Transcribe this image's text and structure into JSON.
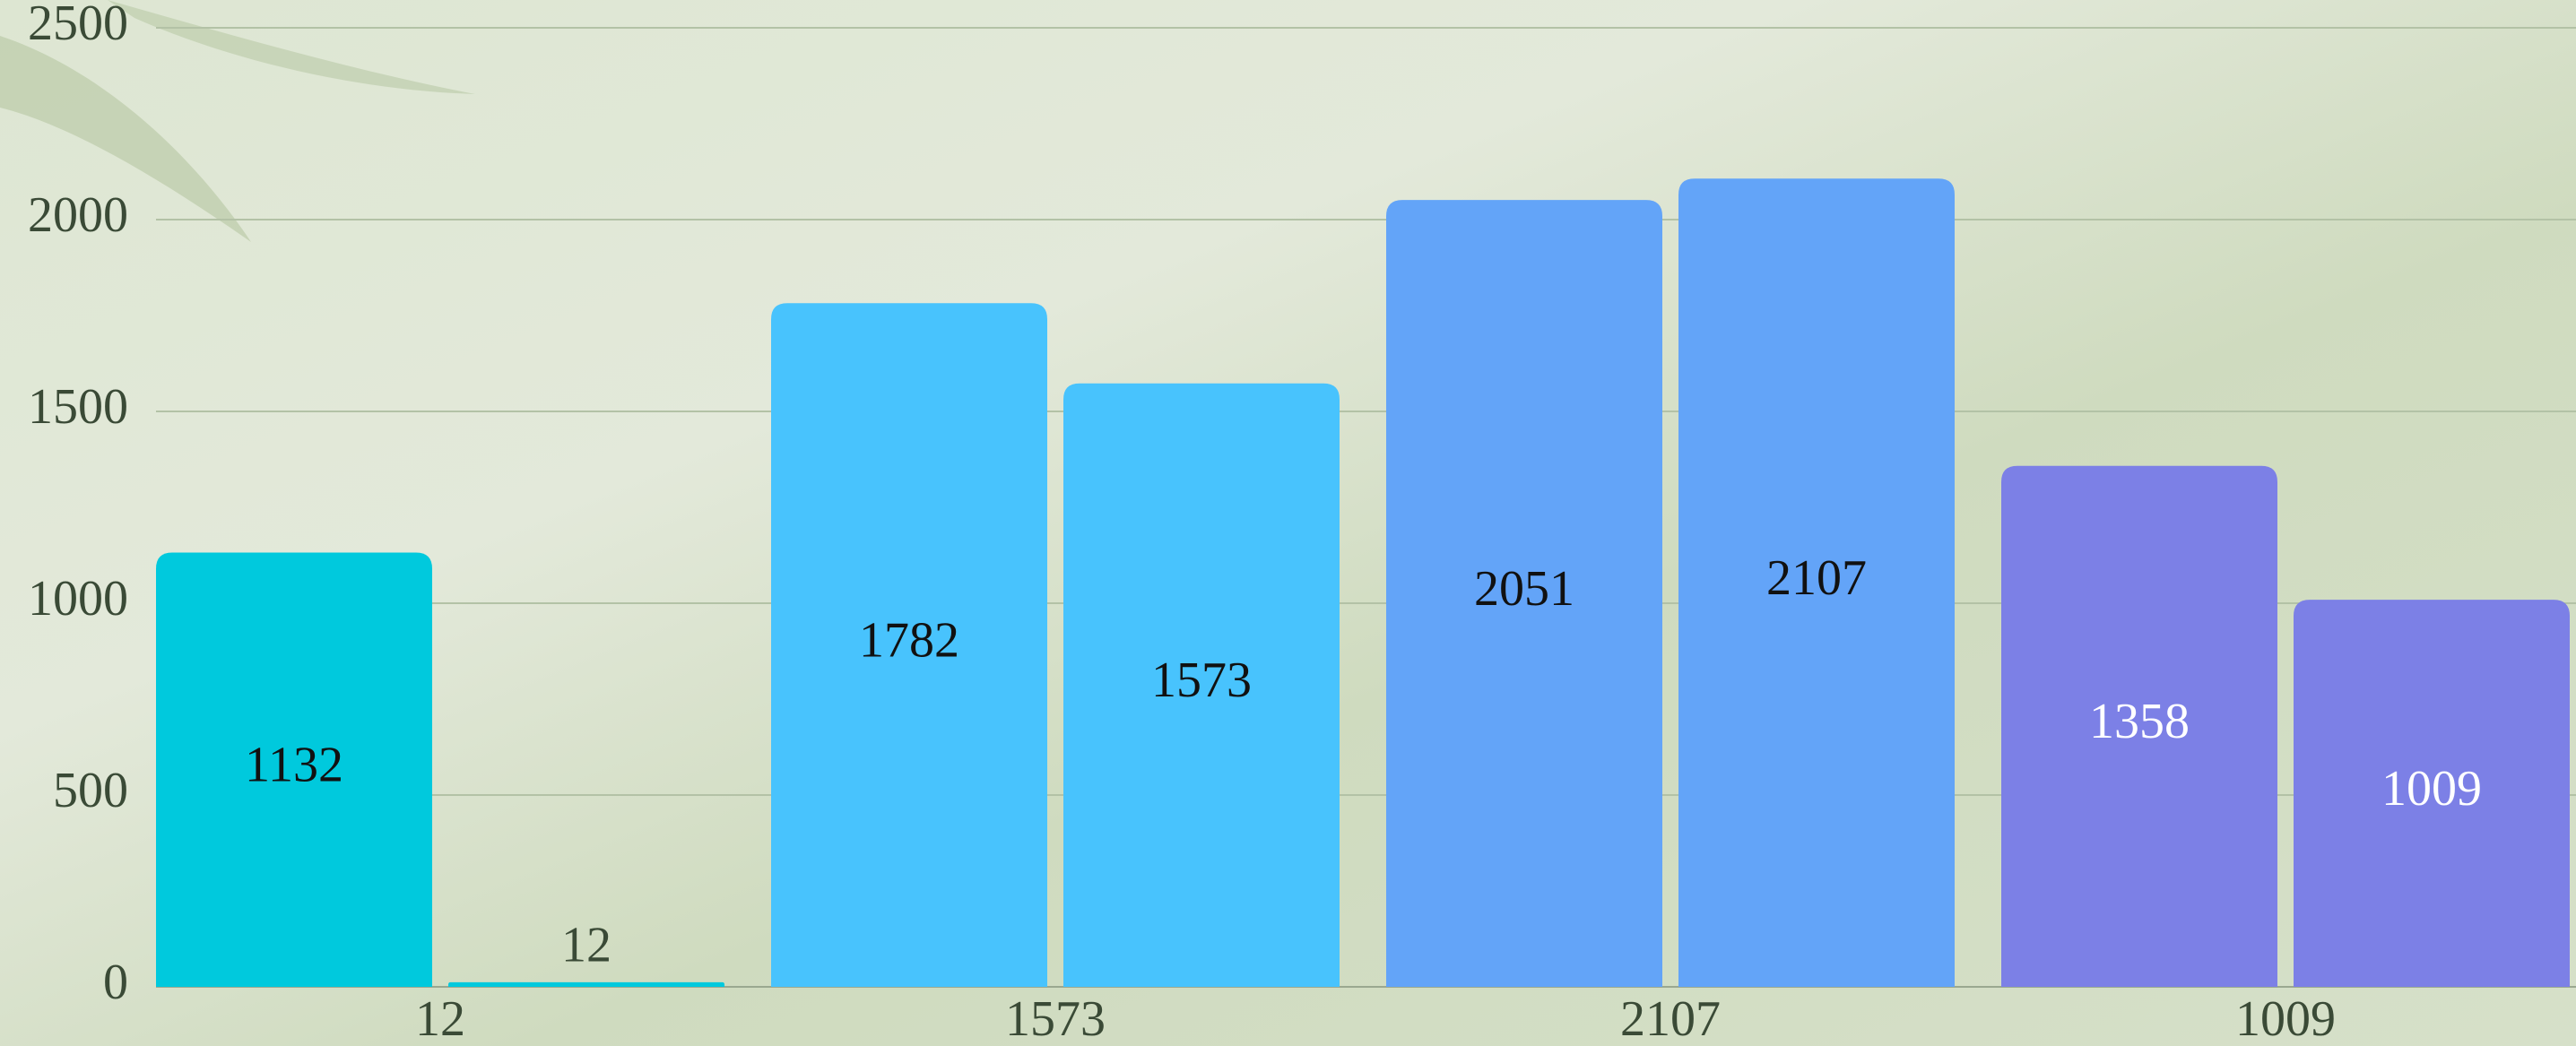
{
  "chart_data": {
    "type": "bar",
    "categories": [
      "12",
      "1573",
      "2107",
      "1009"
    ],
    "series": [
      {
        "values": [
          1132,
          1782,
          2051,
          1358
        ]
      },
      {
        "values": [
          12,
          1573,
          2107,
          1009
        ]
      }
    ],
    "category_colors": [
      "#00c9dd",
      "#48c3fd",
      "#63a4f8",
      "#7c80e6"
    ],
    "label_colors": [
      "#111111",
      "#111111",
      "#111111",
      "#ffffff"
    ],
    "ylim": [
      0,
      2500
    ],
    "yticks": [
      0,
      500,
      1000,
      1500,
      2000,
      2500
    ],
    "grid": true
  }
}
